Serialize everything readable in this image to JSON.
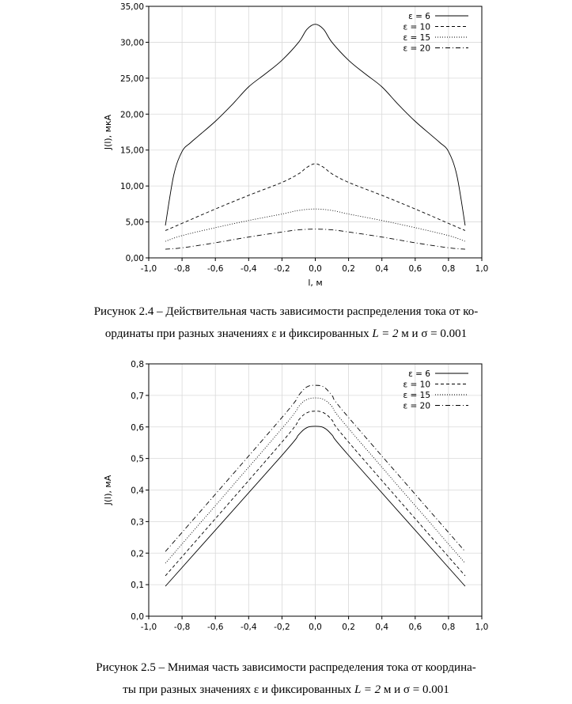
{
  "chart_data": [
    {
      "type": "line",
      "title": "",
      "xlabel": "l, м",
      "ylabel": "J(l), мкА",
      "xlim": [
        -1.0,
        1.0
      ],
      "ylim": [
        0,
        35
      ],
      "x_ticks": [
        "-1,0",
        "-0,8",
        "-0,6",
        "-0,4",
        "-0,2",
        "0,0",
        "0,2",
        "0,4",
        "0,6",
        "0,8",
        "1,0"
      ],
      "y_ticks": [
        "0,00",
        "5,00",
        "10,00",
        "15,00",
        "20,00",
        "25,00",
        "30,00",
        "35,00"
      ],
      "grid": true,
      "legend": "top-right",
      "series": [
        {
          "name": "ε = 6",
          "dash": "solid",
          "x": [
            -0.9,
            -0.85,
            -0.8,
            -0.75,
            -0.7,
            -0.6,
            -0.5,
            -0.4,
            -0.3,
            -0.2,
            -0.1,
            -0.05,
            0,
            0.05,
            0.1,
            0.2,
            0.3,
            0.4,
            0.5,
            0.6,
            0.7,
            0.75,
            0.8,
            0.85,
            0.9
          ],
          "y": [
            4.5,
            11.5,
            14.8,
            16.0,
            17.0,
            19.0,
            21.3,
            23.8,
            25.6,
            27.5,
            30.0,
            31.8,
            32.5,
            31.8,
            30.0,
            27.5,
            25.6,
            23.8,
            21.3,
            19.0,
            17.0,
            16.0,
            14.8,
            11.5,
            4.5
          ]
        },
        {
          "name": "ε = 10",
          "dash": "dashed",
          "x": [
            -0.9,
            -0.8,
            -0.6,
            -0.4,
            -0.2,
            -0.1,
            -0.05,
            0,
            0.05,
            0.1,
            0.2,
            0.4,
            0.6,
            0.8,
            0.9
          ],
          "y": [
            3.8,
            4.8,
            6.8,
            8.7,
            10.5,
            11.7,
            12.6,
            13.1,
            12.6,
            11.7,
            10.5,
            8.7,
            6.8,
            4.8,
            3.8
          ]
        },
        {
          "name": "ε = 15",
          "dash": "dotted",
          "x": [
            -0.9,
            -0.8,
            -0.6,
            -0.4,
            -0.2,
            -0.1,
            0,
            0.1,
            0.2,
            0.4,
            0.6,
            0.8,
            0.9
          ],
          "y": [
            2.3,
            3.1,
            4.2,
            5.2,
            6.1,
            6.6,
            6.8,
            6.6,
            6.1,
            5.2,
            4.2,
            3.1,
            2.3
          ]
        },
        {
          "name": "ε = 20",
          "dash": "dashdot",
          "x": [
            -0.9,
            -0.8,
            -0.6,
            -0.4,
            -0.2,
            -0.1,
            0,
            0.1,
            0.2,
            0.4,
            0.6,
            0.8,
            0.9
          ],
          "y": [
            1.2,
            1.4,
            2.1,
            2.9,
            3.6,
            3.9,
            4.0,
            3.9,
            3.6,
            2.9,
            2.1,
            1.4,
            1.2
          ]
        }
      ]
    },
    {
      "type": "line",
      "title": "",
      "xlabel": "l, м",
      "ylabel": "J(l), мА",
      "xlim": [
        -1.0,
        1.0
      ],
      "ylim": [
        0,
        0.8
      ],
      "x_ticks": [
        "-1,0",
        "-0,8",
        "-0,6",
        "-0,4",
        "-0,2",
        "0,0",
        "0,2",
        "0,4",
        "0,6",
        "0,8",
        "1,0"
      ],
      "y_ticks": [
        "0,0",
        "0,1",
        "0,2",
        "0,3",
        "0,4",
        "0,5",
        "0,6",
        "0,7",
        "0,8"
      ],
      "grid": true,
      "legend": "top-right",
      "series": [
        {
          "name": "ε = 6",
          "dash": "solid",
          "x": [
            -0.9,
            -0.2,
            -0.1,
            -0.05,
            0,
            0.05,
            0.1,
            0.2,
            0.9
          ],
          "y": [
            0.095,
            0.51,
            0.575,
            0.598,
            0.602,
            0.598,
            0.575,
            0.51,
            0.095
          ]
        },
        {
          "name": "ε = 10",
          "dash": "dashed",
          "x": [
            -0.9,
            -0.2,
            -0.1,
            -0.05,
            0,
            0.05,
            0.1,
            0.2,
            0.9
          ],
          "y": [
            0.128,
            0.552,
            0.622,
            0.645,
            0.65,
            0.645,
            0.622,
            0.552,
            0.128
          ]
        },
        {
          "name": "ε = 15",
          "dash": "dotted",
          "x": [
            -0.9,
            -0.2,
            -0.1,
            -0.05,
            0,
            0.05,
            0.1,
            0.2,
            0.9
          ],
          "y": [
            0.168,
            0.595,
            0.665,
            0.687,
            0.692,
            0.687,
            0.665,
            0.595,
            0.168
          ]
        },
        {
          "name": "ε = 20",
          "dash": "dashdot",
          "x": [
            -0.9,
            -0.2,
            -0.1,
            -0.05,
            0,
            0.05,
            0.1,
            0.2,
            0.9
          ],
          "y": [
            0.205,
            0.63,
            0.7,
            0.727,
            0.732,
            0.727,
            0.7,
            0.63,
            0.205
          ]
        }
      ]
    }
  ],
  "captions": [
    {
      "line1": "Рисунок 2.4 – Действительная часть зависимости распределения тока от ко-",
      "line2_prefix": "ординаты при разных значениях",
      "symbol": "ε",
      "line2_mid": "и фиксированных",
      "L_expr": "L = 2",
      "units_and": "м и",
      "sigma_expr": "σ = 0.001"
    },
    {
      "line1": "Рисунок 2.5 – Мнимая часть зависимости распределения тока от координа-",
      "line2_prefix": "ты при разных значениях",
      "symbol": "ε",
      "line2_mid": "и фиксированных",
      "L_expr": "L = 2",
      "units_and": "м и",
      "sigma_expr": "σ = 0.001"
    }
  ]
}
